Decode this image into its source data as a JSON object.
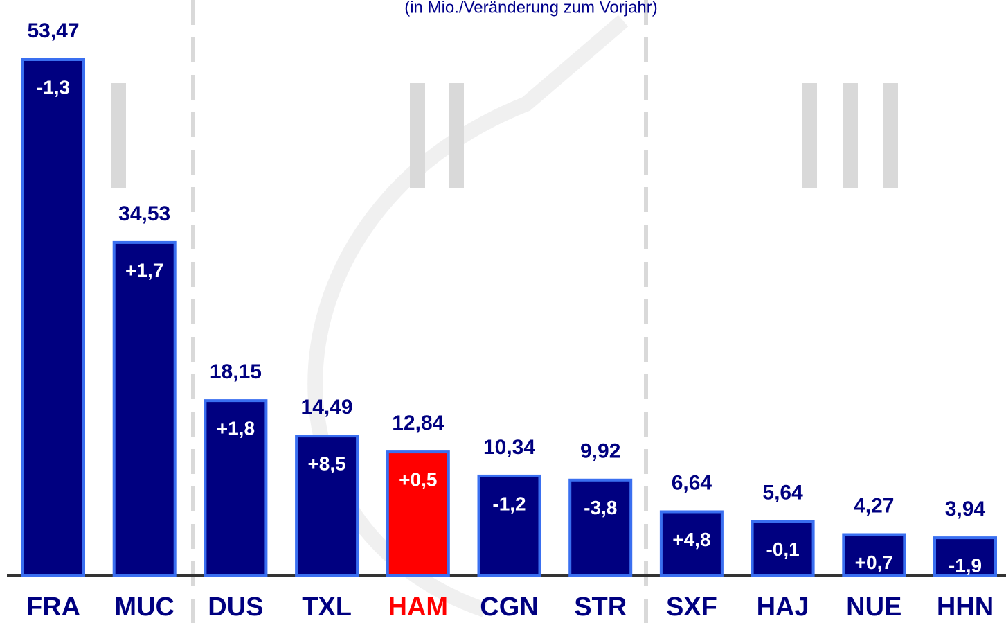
{
  "chart_data": {
    "type": "bar",
    "subtitle": "(in Mio./Veränderung zum Vorjahr)",
    "categories": [
      "FRA",
      "MUC",
      "DUS",
      "TXL",
      "HAM",
      "CGN",
      "STR",
      "SXF",
      "HAJ",
      "NUE",
      "HHN"
    ],
    "values": [
      53.47,
      34.53,
      18.15,
      14.49,
      12.84,
      10.34,
      9.92,
      6.64,
      5.64,
      4.27,
      3.94
    ],
    "value_labels": [
      "53,47",
      "34,53",
      "18,15",
      "14,49",
      "12,84",
      "10,34",
      "9,92",
      "6,64",
      "5,64",
      "4,27",
      "3,94"
    ],
    "changes": [
      -1.3,
      1.7,
      1.8,
      8.5,
      0.5,
      -1.2,
      -3.8,
      4.8,
      -0.1,
      0.7,
      -1.9
    ],
    "change_labels": [
      "-1,3",
      "+1,7",
      "+1,8",
      "+8,5",
      "+0,5",
      "-1,2",
      "-3,8",
      "+4,8",
      "-0,1",
      "+0,7",
      "-1,9"
    ],
    "colors": [
      "#000080",
      "#000080",
      "#000080",
      "#000080",
      "#ff0000",
      "#000080",
      "#000080",
      "#000080",
      "#000080",
      "#000080",
      "#000080"
    ]
  }
}
